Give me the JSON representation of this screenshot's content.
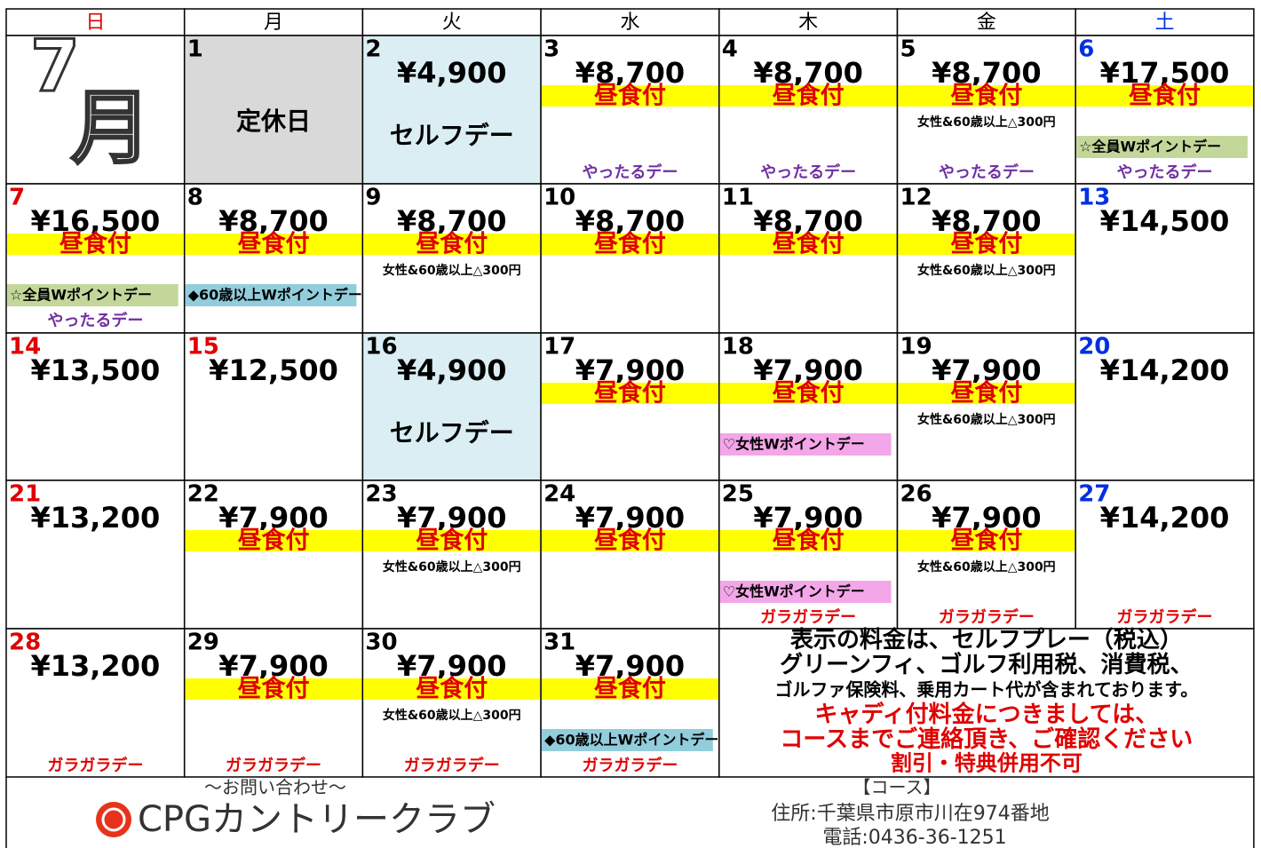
{
  "weekdays": [
    "日",
    "月",
    "火",
    "水",
    "木",
    "金",
    "土"
  ],
  "weekday_colors": [
    "#e00000",
    "#000000",
    "#000000",
    "#000000",
    "#000000",
    "#000000",
    "#0030e0"
  ],
  "logo": {
    "number": "7",
    "unit": "月"
  },
  "cells": [
    {
      "day": "1",
      "label": "定休日",
      "bg": "#d9d9d9"
    },
    {
      "day": "2",
      "price": "¥4,900",
      "label": "セルフデー",
      "bg": "#daeef3"
    },
    {
      "day": "3",
      "price": "¥8,700",
      "lunch": "昼食付",
      "event": "やったるデー",
      "event_color": "#7030a0"
    },
    {
      "day": "4",
      "price": "¥8,700",
      "lunch": "昼食付",
      "event": "やったるデー",
      "event_color": "#7030a0"
    },
    {
      "day": "5",
      "price": "¥8,700",
      "lunch": "昼食付",
      "note": "女性&60歳以上△300円",
      "event": "やったるデー",
      "event_color": "#7030a0"
    },
    {
      "day": "6",
      "day_color": "#0030e0",
      "price": "¥17,500",
      "lunch": "昼食付",
      "special": "☆全員Wポイントデー",
      "special_color": "#c4d79b",
      "event": "やったるデー",
      "event_color": "#7030a0"
    },
    {
      "day": "7",
      "day_color": "#e00000",
      "price": "¥16,500",
      "lunch": "昼食付",
      "special": "☆全員Wポイントデー",
      "special_color": "#c4d79b",
      "event": "やったるデー",
      "event_color": "#7030a0"
    },
    {
      "day": "8",
      "price": "¥8,700",
      "lunch": "昼食付",
      "special": "◆60歳以上Wポイントデー",
      "special_color": "#92cddc"
    },
    {
      "day": "9",
      "price": "¥8,700",
      "lunch": "昼食付",
      "note": "女性&60歳以上△300円"
    },
    {
      "day": "10",
      "price": "¥8,700",
      "lunch": "昼食付"
    },
    {
      "day": "11",
      "price": "¥8,700",
      "lunch": "昼食付"
    },
    {
      "day": "12",
      "price": "¥8,700",
      "lunch": "昼食付",
      "note": "女性&60歳以上△300円"
    },
    {
      "day": "13",
      "day_color": "#0030e0",
      "price": "¥14,500"
    },
    {
      "day": "14",
      "day_color": "#e00000",
      "price": "¥13,500"
    },
    {
      "day": "15",
      "day_color": "#e00000",
      "price": "¥12,500"
    },
    {
      "day": "16",
      "price": "¥4,900",
      "label": "セルフデー",
      "bg": "#daeef3"
    },
    {
      "day": "17",
      "price": "¥7,900",
      "lunch": "昼食付"
    },
    {
      "day": "18",
      "price": "¥7,900",
      "lunch": "昼食付",
      "special": "♡女性Wポイントデー",
      "special_color": "#f3a6e8"
    },
    {
      "day": "19",
      "price": "¥7,900",
      "lunch": "昼食付",
      "note": "女性&60歳以上△300円"
    },
    {
      "day": "20",
      "day_color": "#0030e0",
      "price": "¥14,200"
    },
    {
      "day": "21",
      "day_color": "#e00000",
      "price": "¥13,200"
    },
    {
      "day": "22",
      "price": "¥7,900",
      "lunch": "昼食付"
    },
    {
      "day": "23",
      "price": "¥7,900",
      "lunch": "昼食付",
      "note": "女性&60歳以上△300円"
    },
    {
      "day": "24",
      "price": "¥7,900",
      "lunch": "昼食付"
    },
    {
      "day": "25",
      "price": "¥7,900",
      "lunch": "昼食付",
      "special": "♡女性Wポイントデー",
      "special_color": "#f3a6e8",
      "event": "ガラガラデー",
      "event_color": "#e00000"
    },
    {
      "day": "26",
      "price": "¥7,900",
      "lunch": "昼食付",
      "note": "女性&60歳以上△300円",
      "event": "ガラガラデー",
      "event_color": "#e00000"
    },
    {
      "day": "27",
      "day_color": "#0030e0",
      "price": "¥14,200",
      "event": "ガラガラデー",
      "event_color": "#e00000"
    },
    {
      "day": "28",
      "day_color": "#e00000",
      "price": "¥13,200",
      "event": "ガラガラデー",
      "event_color": "#e00000"
    },
    {
      "day": "29",
      "price": "¥7,900",
      "lunch": "昼食付",
      "event": "ガラガラデー",
      "event_color": "#e00000"
    },
    {
      "day": "30",
      "price": "¥7,900",
      "lunch": "昼食付",
      "note": "女性&60歳以上△300円",
      "event": "ガラガラデー",
      "event_color": "#e00000"
    },
    {
      "day": "31",
      "price": "¥7,900",
      "lunch": "昼食付",
      "special": "◆60歳以上Wポイントデー",
      "special_color": "#92cddc",
      "event": "ガラガラデー",
      "event_color": "#e00000"
    }
  ],
  "notice": [
    {
      "text": "表示の料金は、セルフプレー（税込）",
      "color": "#000000"
    },
    {
      "text": "グリーンフィ、ゴルフ利用税、消費税、",
      "color": "#000000"
    },
    {
      "text": "ゴルファ保険料、乗用カート代が含まれております。",
      "color": "#000000"
    },
    {
      "text": "キャディ付料金につきましては、",
      "color": "#e00000"
    },
    {
      "text": "コースまでご連絡頂き、ご確認ください",
      "color": "#e00000"
    },
    {
      "text": "割引・特典併用不可",
      "color": "#e00000"
    }
  ],
  "footer": {
    "contact": "～お問い合わせ～",
    "club": "CPGカントリークラブ",
    "course": "【コース】",
    "address": "住所:千葉県市原市川在974番地",
    "phone": "電話:0436-36-1251"
  }
}
